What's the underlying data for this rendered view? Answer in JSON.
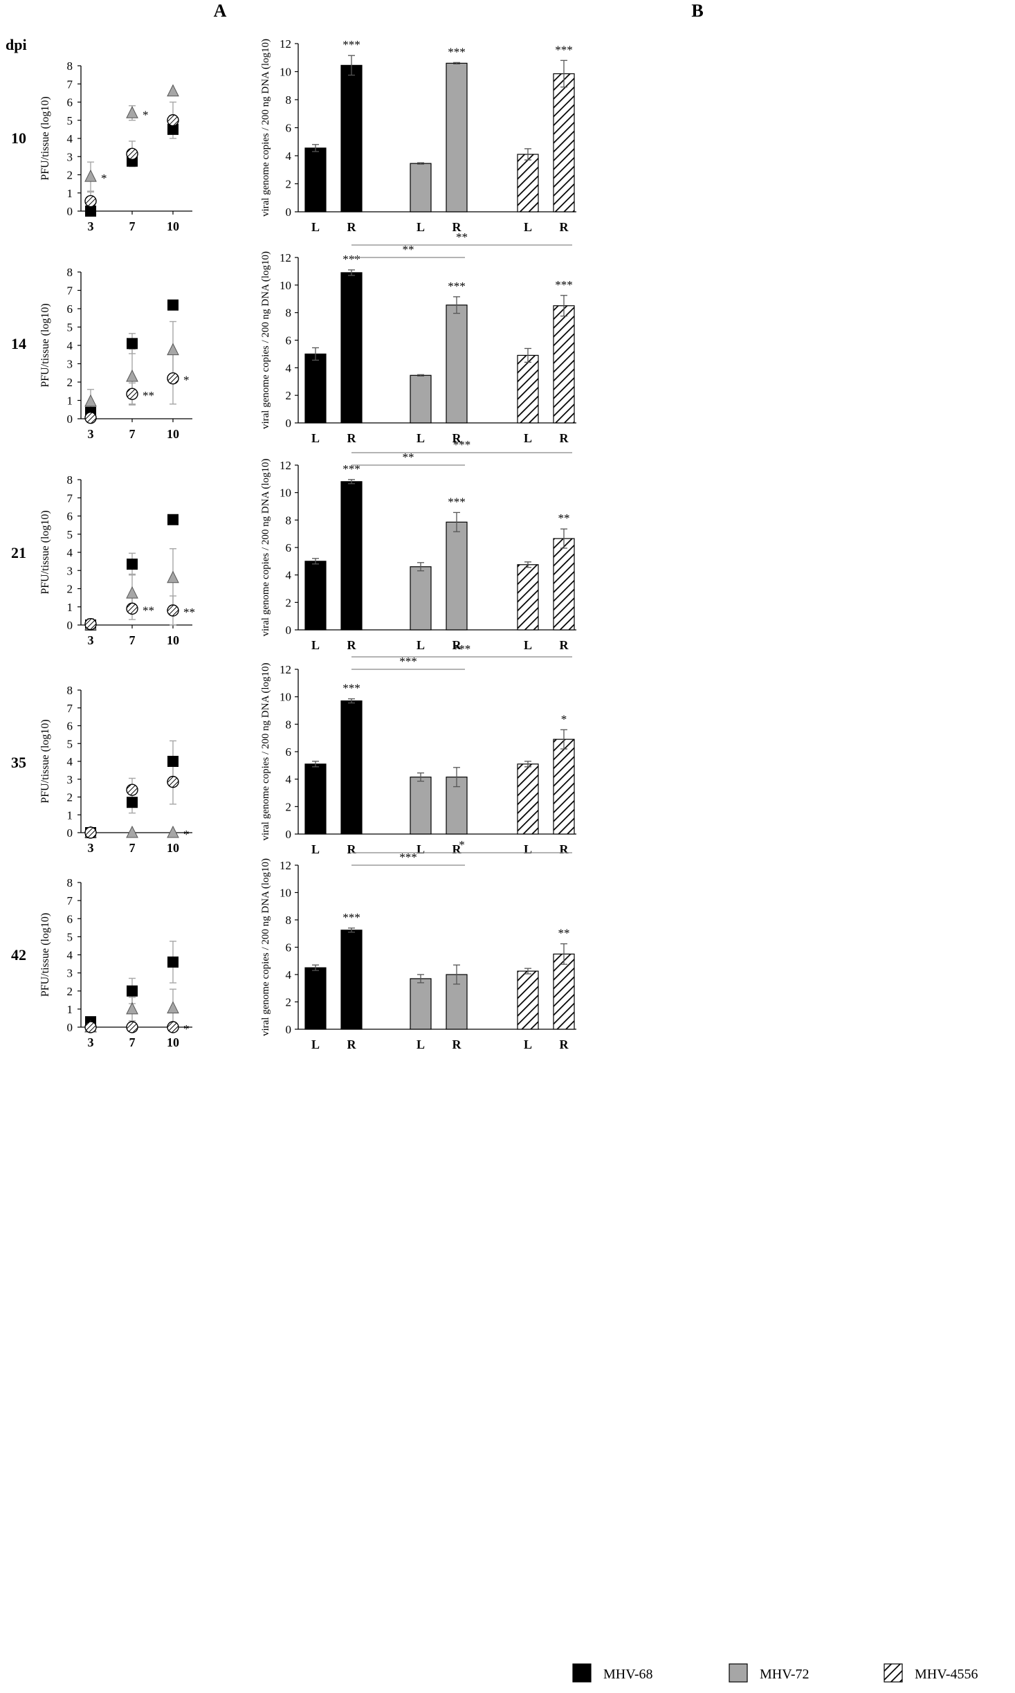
{
  "figure": {
    "panel_a_label": "A",
    "panel_b_label": "B",
    "dpi_label": "dpi"
  },
  "legend": [
    {
      "label": "MHV-68",
      "pattern": "solid",
      "color": "#000000"
    },
    {
      "label": "MHV-72",
      "pattern": "solid",
      "color": "#a6a6a6"
    },
    {
      "label": "MHV-4556",
      "pattern": "hatch",
      "color": "#ffffff"
    }
  ],
  "colors": {
    "mhv68": "#000000",
    "mhv72": "#a6a6a6",
    "mhv4556": "#ffffff",
    "axis": "#000000",
    "errorbar_a": "#a6a6a6",
    "errorbar_b": "#555555"
  },
  "chart_data": [
    {
      "type": "scatter",
      "panel": "A",
      "row_label": "10",
      "ylabel": "PFU/tissue (log10)",
      "ylim": [
        0,
        8
      ],
      "yticks": [
        0,
        1,
        2,
        3,
        4,
        5,
        6,
        7,
        8
      ],
      "categories": [
        "3",
        "7",
        "10"
      ],
      "series": [
        {
          "marker": "square",
          "values": [
            0,
            2.75,
            4.5
          ],
          "errors": [
            0,
            0,
            0
          ]
        },
        {
          "marker": "triangle",
          "values": [
            1.9,
            5.4,
            6.6
          ],
          "errors": [
            0.8,
            0.4,
            0
          ],
          "sig": [
            "*",
            "*",
            ""
          ]
        },
        {
          "marker": "hatched-circle",
          "values": [
            0.55,
            3.15,
            5.0
          ],
          "errors": [
            0.5,
            0.7,
            1.0
          ]
        }
      ]
    },
    {
      "type": "scatter",
      "panel": "A",
      "row_label": "14",
      "ylabel": "PFU/tissue (log10)",
      "ylim": [
        0,
        8
      ],
      "yticks": [
        0,
        1,
        2,
        3,
        4,
        5,
        6,
        7,
        8
      ],
      "categories": [
        "3",
        "7",
        "10"
      ],
      "series": [
        {
          "marker": "square",
          "values": [
            0.35,
            4.1,
            6.2
          ],
          "errors": [
            0,
            0.55,
            0.2
          ]
        },
        {
          "marker": "triangle",
          "values": [
            0.95,
            2.3,
            3.75
          ],
          "errors": [
            0.65,
            1.5,
            1.55
          ]
        },
        {
          "marker": "hatched-circle",
          "values": [
            0.05,
            1.35,
            2.2
          ],
          "errors": [
            0,
            0.6,
            1.4
          ],
          "sig": [
            "",
            "**",
            "*"
          ]
        }
      ]
    },
    {
      "type": "scatter",
      "panel": "A",
      "row_label": "21",
      "ylabel": "PFU/tissue (log10)",
      "ylim": [
        0,
        8
      ],
      "yticks": [
        0,
        1,
        2,
        3,
        4,
        5,
        6,
        7,
        8
      ],
      "categories": [
        "3",
        "7",
        "10"
      ],
      "series": [
        {
          "marker": "square",
          "values": [
            0,
            3.35,
            5.8
          ],
          "errors": [
            0,
            0.6,
            0
          ]
        },
        {
          "marker": "triangle",
          "values": [
            0,
            1.75,
            2.6
          ],
          "errors": [
            0,
            1.05,
            1.6
          ]
        },
        {
          "marker": "hatched-circle",
          "values": [
            0.05,
            0.9,
            0.8
          ],
          "errors": [
            0.3,
            0.6,
            0.8
          ],
          "sig": [
            "",
            "**",
            "**"
          ]
        }
      ]
    },
    {
      "type": "scatter",
      "panel": "A",
      "row_label": "35",
      "ylabel": "PFU/tissue (log10)",
      "ylim": [
        0,
        8
      ],
      "yticks": [
        0,
        1,
        2,
        3,
        4,
        5,
        6,
        7,
        8
      ],
      "categories": [
        "3",
        "7",
        "10"
      ],
      "series": [
        {
          "marker": "square",
          "values": [
            0,
            1.7,
            4.0
          ],
          "errors": [
            0,
            0.6,
            1.15
          ]
        },
        {
          "marker": "triangle",
          "values": [
            0,
            0,
            0
          ],
          "errors": [
            0,
            0,
            0
          ],
          "sig": [
            "",
            "",
            "*"
          ]
        },
        {
          "marker": "hatched-circle",
          "values": [
            0,
            2.4,
            2.85
          ],
          "errors": [
            0,
            0.65,
            1.25
          ]
        }
      ]
    },
    {
      "type": "scatter",
      "panel": "A",
      "row_label": "42",
      "ylabel": "PFU/tissue (log10)",
      "ylim": [
        0,
        8
      ],
      "yticks": [
        0,
        1,
        2,
        3,
        4,
        5,
        6,
        7,
        8
      ],
      "categories": [
        "3",
        "7",
        "10"
      ],
      "series": [
        {
          "marker": "square",
          "values": [
            0.3,
            2.0,
            3.6
          ],
          "errors": [
            0.25,
            0.7,
            1.15
          ]
        },
        {
          "marker": "triangle",
          "values": [
            0,
            1.0,
            1.05
          ],
          "errors": [
            0,
            0.65,
            1.05
          ]
        },
        {
          "marker": "hatched-circle",
          "values": [
            0,
            0,
            0
          ],
          "errors": [
            0,
            0,
            0
          ],
          "sig": [
            "",
            "",
            "*"
          ]
        }
      ]
    },
    {
      "type": "bar",
      "panel": "B",
      "row_label": "10",
      "ylabel": "viral genome copies / 200 ng DNA (log10)",
      "ylim": [
        0,
        12
      ],
      "yticks": [
        0,
        2,
        4,
        6,
        8,
        10,
        12
      ],
      "categories": [
        "L",
        "R",
        "L",
        "R",
        "L",
        "R"
      ],
      "values": [
        4.55,
        10.45,
        3.45,
        10.6,
        4.1,
        9.85
      ],
      "errors": [
        0.25,
        0.7,
        0.05,
        0.05,
        0.4,
        0.95
      ],
      "sig": [
        "",
        "***",
        "",
        "***",
        "",
        "***"
      ],
      "brackets": []
    },
    {
      "type": "bar",
      "panel": "B",
      "row_label": "14",
      "ylabel": "viral genome copies / 200 ng DNA (log10)",
      "ylim": [
        0,
        12
      ],
      "yticks": [
        0,
        2,
        4,
        6,
        8,
        10,
        12
      ],
      "categories": [
        "L",
        "R",
        "L",
        "R",
        "L",
        "R"
      ],
      "values": [
        5.0,
        10.9,
        3.45,
        8.55,
        4.9,
        8.5
      ],
      "errors": [
        0.45,
        0.2,
        0.05,
        0.6,
        0.5,
        0.75
      ],
      "sig": [
        "",
        "***",
        "",
        "***",
        "",
        "***"
      ],
      "brackets": [
        {
          "from": 1,
          "to": 3,
          "label": "**"
        },
        {
          "from": 1,
          "to": 5,
          "label": "**"
        }
      ]
    },
    {
      "type": "bar",
      "panel": "B",
      "row_label": "21",
      "ylabel": "viral genome copies / 200 ng DNA (log10)",
      "ylim": [
        0,
        12
      ],
      "yticks": [
        0,
        2,
        4,
        6,
        8,
        10,
        12
      ],
      "categories": [
        "L",
        "R",
        "L",
        "R",
        "L",
        "R"
      ],
      "values": [
        5.0,
        10.8,
        4.6,
        7.85,
        4.75,
        6.65
      ],
      "errors": [
        0.2,
        0.15,
        0.3,
        0.7,
        0.2,
        0.7
      ],
      "sig": [
        "",
        "***",
        "",
        "***",
        "",
        "**"
      ],
      "brackets": [
        {
          "from": 1,
          "to": 3,
          "label": "**"
        },
        {
          "from": 1,
          "to": 5,
          "label": "***"
        }
      ]
    },
    {
      "type": "bar",
      "panel": "B",
      "row_label": "35",
      "ylabel": "viral genome copies / 200 ng DNA (log10)",
      "ylim": [
        0,
        12
      ],
      "yticks": [
        0,
        2,
        4,
        6,
        8,
        10,
        12
      ],
      "categories": [
        "L",
        "R",
        "L",
        "R",
        "L",
        "R"
      ],
      "values": [
        5.1,
        9.7,
        4.15,
        4.15,
        5.1,
        6.9
      ],
      "errors": [
        0.2,
        0.15,
        0.3,
        0.7,
        0.2,
        0.7
      ],
      "sig": [
        "",
        "***",
        "",
        "",
        "",
        "*"
      ],
      "brackets": [
        {
          "from": 1,
          "to": 3,
          "label": "***"
        },
        {
          "from": 1,
          "to": 5,
          "label": "***"
        }
      ]
    },
    {
      "type": "bar",
      "panel": "B",
      "row_label": "42",
      "ylabel": "viral genome copies / 200 ng DNA (log10)",
      "ylim": [
        0,
        12
      ],
      "yticks": [
        0,
        2,
        4,
        6,
        8,
        10,
        12
      ],
      "categories": [
        "L",
        "R",
        "L",
        "R",
        "L",
        "R"
      ],
      "values": [
        4.5,
        7.25,
        3.7,
        4.0,
        4.25,
        5.5
      ],
      "errors": [
        0.2,
        0.15,
        0.3,
        0.7,
        0.2,
        0.75
      ],
      "sig": [
        "",
        "***",
        "",
        "",
        "",
        "**"
      ],
      "brackets": [
        {
          "from": 1,
          "to": 3,
          "label": "***"
        },
        {
          "from": 1,
          "to": 5,
          "label": "*"
        }
      ]
    }
  ]
}
